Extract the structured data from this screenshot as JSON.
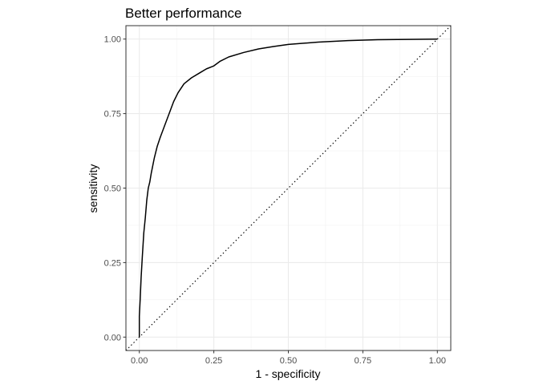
{
  "chart_data": {
    "type": "line",
    "title": "Better performance",
    "xlabel": "1 - specificity",
    "ylabel": "sensitivity",
    "xlim": [
      -0.045,
      1.045
    ],
    "ylim": [
      -0.045,
      1.045
    ],
    "x_ticks": [
      0.0,
      0.25,
      0.5,
      0.75,
      1.0
    ],
    "x_tick_labels": [
      "0.00",
      "0.25",
      "0.50",
      "0.75",
      "1.00"
    ],
    "y_ticks": [
      0.0,
      0.25,
      0.5,
      0.75,
      1.0
    ],
    "y_tick_labels": [
      "0.00",
      "0.25",
      "0.50",
      "0.75",
      "1.00"
    ],
    "grid": true,
    "aspect": "equal",
    "series": [
      {
        "x": [
          0.0,
          0.0,
          0.003,
          0.006,
          0.01,
          0.015,
          0.02,
          0.025,
          0.03,
          0.035,
          0.04,
          0.05,
          0.06,
          0.07,
          0.085,
          0.1,
          0.115,
          0.13,
          0.15,
          0.175,
          0.2,
          0.225,
          0.25,
          0.27,
          0.3,
          0.35,
          0.4,
          0.45,
          0.5,
          0.6,
          0.7,
          0.8,
          0.9,
          1.0
        ],
        "y": [
          0.0,
          0.07,
          0.13,
          0.2,
          0.27,
          0.35,
          0.4,
          0.46,
          0.5,
          0.52,
          0.55,
          0.6,
          0.64,
          0.67,
          0.71,
          0.75,
          0.79,
          0.82,
          0.85,
          0.87,
          0.885,
          0.9,
          0.91,
          0.925,
          0.94,
          0.955,
          0.967,
          0.975,
          0.982,
          0.99,
          0.995,
          0.998,
          0.999,
          1.0
        ],
        "color": "#000000"
      }
    ],
    "reference_line": {
      "x": [
        -0.045,
        1.045
      ],
      "y": [
        -0.045,
        1.045
      ],
      "style": "dotted",
      "color": "#000000"
    }
  },
  "colors": {
    "panel_border": "#333333",
    "grid_major": "#ebebeb",
    "grid_minor": "#f2f2f2",
    "tick_label": "#4d4d4d"
  }
}
